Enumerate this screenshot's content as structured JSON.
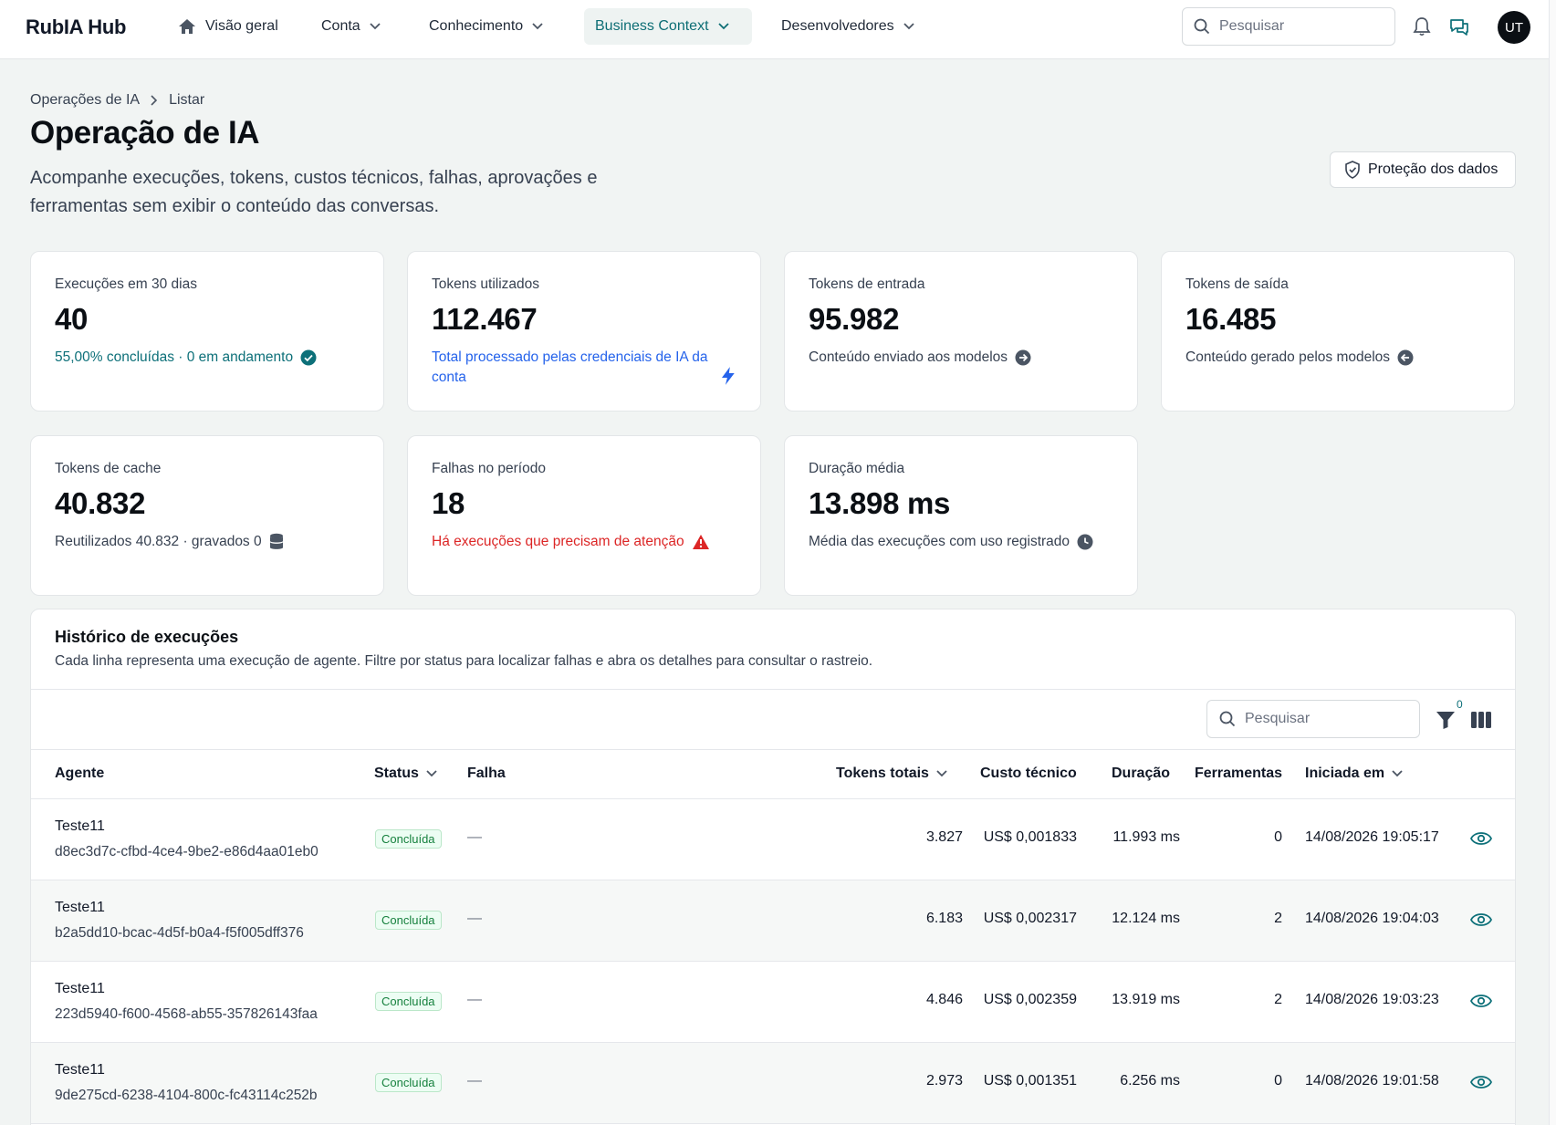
{
  "app": {
    "brand": "RubIA Hub"
  },
  "nav": {
    "items": [
      {
        "label": "Visão geral"
      },
      {
        "label": "Conta"
      },
      {
        "label": "Conhecimento"
      },
      {
        "label": "Business Context"
      },
      {
        "label": "Desenvolvedores"
      }
    ],
    "search_placeholder": "Pesquisar",
    "avatar_initials": "UT"
  },
  "breadcrumb": {
    "parent": "Operações de IA",
    "current": "Listar"
  },
  "header": {
    "title": "Operação de IA",
    "description": "Acompanhe execuções, tokens, custos técnicos, falhas, aprovações e ferramentas sem exibir o conteúdo das conversas.",
    "protect_button": "Proteção dos dados"
  },
  "stats": {
    "executions": {
      "label": "Execuções em 30 dias",
      "value": "40",
      "sub": "55,00% concluídas · 0 em andamento"
    },
    "tokens_used": {
      "label": "Tokens utilizados",
      "value": "112.467",
      "sub": "Total processado pelas credenciais de IA da conta"
    },
    "tokens_in": {
      "label": "Tokens de entrada",
      "value": "95.982",
      "sub": "Conteúdo enviado aos modelos"
    },
    "tokens_out": {
      "label": "Tokens de saída",
      "value": "16.485",
      "sub": "Conteúdo gerado pelos modelos"
    },
    "tokens_cache": {
      "label": "Tokens de cache",
      "value": "40.832",
      "sub": "Reutilizados 40.832 · gravados 0"
    },
    "failures": {
      "label": "Falhas no período",
      "value": "18",
      "sub": "Há execuções que precisam de atenção"
    },
    "duration": {
      "label": "Duração média",
      "value": "13.898 ms",
      "sub": "Média das execuções com uso registrado"
    }
  },
  "history": {
    "title": "Histórico de execuções",
    "description": "Cada linha representa uma execução de agente. Filtre por status para localizar falhas e abra os detalhes para consultar o rastreio.",
    "search_placeholder": "Pesquisar",
    "filter_count": "0",
    "columns": {
      "agent": "Agente",
      "status": "Status",
      "failure": "Falha",
      "tokens": "Tokens totais",
      "cost": "Custo técnico",
      "duration": "Duração",
      "tools": "Ferramentas",
      "started": "Iniciada em"
    },
    "rows": [
      {
        "agent": "Teste11",
        "id": "d8ec3d7c-cfbd-4ce4-9be2-e86d4aa01eb0",
        "status": "Concluída",
        "failure": "—",
        "tokens": "3.827",
        "cost": "US$ 0,001833",
        "duration": "11.993 ms",
        "tools": "0",
        "started": "14/08/2026 19:05:17"
      },
      {
        "agent": "Teste11",
        "id": "b2a5dd10-bcac-4d5f-b0a4-f5f005dff376",
        "status": "Concluída",
        "failure": "—",
        "tokens": "6.183",
        "cost": "US$ 0,002317",
        "duration": "12.124 ms",
        "tools": "2",
        "started": "14/08/2026 19:04:03"
      },
      {
        "agent": "Teste11",
        "id": "223d5940-f600-4568-ab55-357826143faa",
        "status": "Concluída",
        "failure": "—",
        "tokens": "4.846",
        "cost": "US$ 0,002359",
        "duration": "13.919 ms",
        "tools": "2",
        "started": "14/08/2026 19:03:23"
      },
      {
        "agent": "Teste11",
        "id": "9de275cd-6238-4104-800c-fc43114c252b",
        "status": "Concluída",
        "failure": "—",
        "tokens": "2.973",
        "cost": "US$ 0,001351",
        "duration": "6.256 ms",
        "tools": "0",
        "started": "14/08/2026 19:01:58"
      }
    ]
  },
  "colors": {
    "accent": "#0d7079",
    "danger": "#dc2626",
    "link": "#2563eb"
  }
}
